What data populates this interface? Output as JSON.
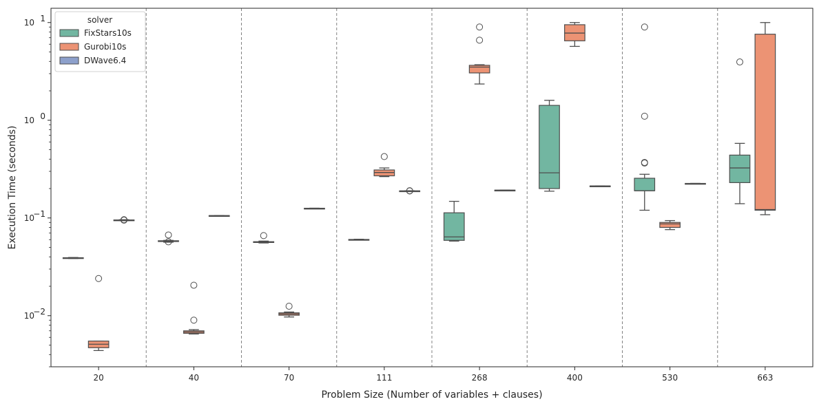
{
  "chart_data": {
    "type": "box",
    "xlabel": "Problem Size (Number of variables + clauses)",
    "ylabel": "Execution Time (seconds)",
    "yscale": "log",
    "ylim": [
      0.003,
      14
    ],
    "categories": [
      "20",
      "40",
      "70",
      "111",
      "268",
      "400",
      "530",
      "663"
    ],
    "separators": "dashed vertical lines between categories",
    "legend": {
      "title": "solver",
      "placement": "upper-left",
      "entries": [
        "FixStars10s",
        "Gurobi10s",
        "DWave6.4"
      ]
    },
    "yticks": [
      {
        "value": 0.01,
        "label": "10",
        "exp": "−2"
      },
      {
        "value": 0.1,
        "label": "10",
        "exp": "−1"
      },
      {
        "value": 1,
        "label": "10",
        "exp": "0"
      },
      {
        "value": 10,
        "label": "10",
        "exp": "1"
      }
    ],
    "series": [
      {
        "name": "FixStars10s",
        "color": "#72b6a1",
        "boxes": [
          {
            "whislo": 0.0385,
            "q1": 0.0387,
            "med": 0.0389,
            "q3": 0.0392,
            "whishi": 0.0394,
            "fliers": []
          },
          {
            "whislo": 0.0565,
            "q1": 0.0575,
            "med": 0.058,
            "q3": 0.0585,
            "whishi": 0.059,
            "fliers": [
              0.057,
              0.067
            ]
          },
          {
            "whislo": 0.0555,
            "q1": 0.0562,
            "med": 0.0567,
            "q3": 0.0572,
            "whishi": 0.058,
            "fliers": [
              0.066
            ]
          },
          {
            "whislo": 0.0595,
            "q1": 0.0597,
            "med": 0.06,
            "q3": 0.0603,
            "whishi": 0.0606,
            "fliers": []
          },
          {
            "whislo": 0.058,
            "q1": 0.059,
            "med": 0.064,
            "q3": 0.113,
            "whishi": 0.148,
            "fliers": []
          },
          {
            "whislo": 0.188,
            "q1": 0.2,
            "med": 0.29,
            "q3": 1.42,
            "whishi": 1.6,
            "fliers": []
          },
          {
            "whislo": 0.12,
            "q1": 0.19,
            "med": 0.19,
            "q3": 0.255,
            "whishi": 0.28,
            "fliers": [
              0.365,
              0.37,
              1.1,
              9.0
            ]
          },
          {
            "whislo": 0.14,
            "q1": 0.23,
            "med": 0.325,
            "q3": 0.44,
            "whishi": 0.58,
            "fliers": [
              3.95
            ]
          }
        ]
      },
      {
        "name": "Gurobi10s",
        "color": "#ec9374",
        "boxes": [
          {
            "whislo": 0.0044,
            "q1": 0.0047,
            "med": 0.0051,
            "q3": 0.0055,
            "whishi": 0.0055,
            "fliers": [
              0.024
            ]
          },
          {
            "whislo": 0.0065,
            "q1": 0.0066,
            "med": 0.0068,
            "q3": 0.007,
            "whishi": 0.0072,
            "fliers": [
              0.009,
              0.0205
            ]
          },
          {
            "whislo": 0.0097,
            "q1": 0.0101,
            "med": 0.0104,
            "q3": 0.0107,
            "whishi": 0.0109,
            "fliers": [
              0.0125
            ]
          },
          {
            "whislo": 0.265,
            "q1": 0.27,
            "med": 0.292,
            "q3": 0.31,
            "whishi": 0.325,
            "fliers": [
              0.425
            ]
          },
          {
            "whislo": 2.35,
            "q1": 3.05,
            "med": 3.5,
            "q3": 3.65,
            "whishi": 3.7,
            "fliers": [
              6.6,
              9.0
            ]
          },
          {
            "whislo": 5.7,
            "q1": 6.5,
            "med": 7.8,
            "q3": 9.5,
            "whishi": 10.0,
            "fliers": []
          },
          {
            "whislo": 0.076,
            "q1": 0.08,
            "med": 0.087,
            "q3": 0.09,
            "whishi": 0.094,
            "fliers": []
          },
          {
            "whislo": 0.108,
            "q1": 0.12,
            "med": 0.122,
            "q3": 7.6,
            "whishi": 10.0,
            "fliers": []
          }
        ]
      },
      {
        "name": "DWave6.4",
        "color": "#8da0cb",
        "boxes": [
          {
            "whislo": 0.094,
            "q1": 0.0945,
            "med": 0.095,
            "q3": 0.0955,
            "whishi": 0.096,
            "fliers": [
              0.095,
              0.096
            ]
          },
          {
            "whislo": 0.105,
            "q1": 0.1052,
            "med": 0.1055,
            "q3": 0.1058,
            "whishi": 0.106,
            "fliers": []
          },
          {
            "whislo": 0.125,
            "q1": 0.1252,
            "med": 0.1255,
            "q3": 0.1258,
            "whishi": 0.126,
            "fliers": []
          },
          {
            "whislo": 0.188,
            "q1": 0.1885,
            "med": 0.189,
            "q3": 0.1895,
            "whishi": 0.19,
            "fliers": [
              0.189,
              0.19
            ]
          },
          {
            "whislo": 0.192,
            "q1": 0.1922,
            "med": 0.1925,
            "q3": 0.1928,
            "whishi": 0.193,
            "fliers": []
          },
          {
            "whislo": 0.212,
            "q1": 0.2122,
            "med": 0.2125,
            "q3": 0.2128,
            "whishi": 0.213,
            "fliers": []
          },
          {
            "whislo": 0.225,
            "q1": 0.2252,
            "med": 0.2255,
            "q3": 0.2258,
            "whishi": 0.226,
            "fliers": []
          },
          {
            "whislo": null,
            "q1": null,
            "med": null,
            "q3": null,
            "whishi": null,
            "fliers": []
          }
        ]
      }
    ]
  }
}
